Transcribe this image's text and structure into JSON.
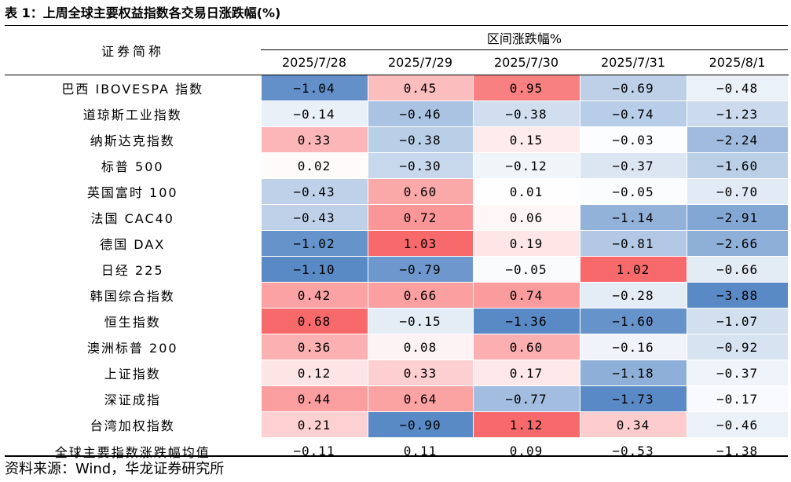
{
  "title": "表 1：上周全球主要权益指数各交易日涨跌幅(%)",
  "header": {
    "name_col": "证券简称",
    "group_label": "区间涨跌幅%",
    "dates": [
      "2025/7/28",
      "2025/7/29",
      "2025/7/30",
      "2025/7/31",
      "2025/8/1"
    ]
  },
  "rows": [
    {
      "name": "巴西 IBOVESPA 指数",
      "values": [
        "-1.04",
        "0.45",
        "0.95",
        "-0.69",
        "-0.48"
      ]
    },
    {
      "name": "道琼斯工业指数",
      "values": [
        "-0.14",
        "-0.46",
        "-0.38",
        "-0.74",
        "-1.23"
      ]
    },
    {
      "name": "纳斯达克指数",
      "values": [
        "0.33",
        "-0.38",
        "0.15",
        "-0.03",
        "-2.24"
      ]
    },
    {
      "name": "标普 500",
      "values": [
        "0.02",
        "-0.30",
        "-0.12",
        "-0.37",
        "-1.60"
      ]
    },
    {
      "name": "英国富时 100",
      "values": [
        "-0.43",
        "0.60",
        "0.01",
        "-0.05",
        "-0.70"
      ]
    },
    {
      "name": "法国 CAC40",
      "values": [
        "-0.43",
        "0.72",
        "0.06",
        "-1.14",
        "-2.91"
      ]
    },
    {
      "name": "德国 DAX",
      "values": [
        "-1.02",
        "1.03",
        "0.19",
        "-0.81",
        "-2.66"
      ]
    },
    {
      "name": "日经 225",
      "values": [
        "-1.10",
        "-0.79",
        "-0.05",
        "1.02",
        "-0.66"
      ]
    },
    {
      "name": "韩国综合指数",
      "values": [
        "0.42",
        "0.66",
        "0.74",
        "-0.28",
        "-3.88"
      ]
    },
    {
      "name": "恒生指数",
      "values": [
        "0.68",
        "-0.15",
        "-1.36",
        "-1.60",
        "-1.07"
      ]
    },
    {
      "name": "澳洲标普 200",
      "values": [
        "0.36",
        "0.08",
        "0.60",
        "-0.16",
        "-0.92"
      ]
    },
    {
      "name": "上证指数",
      "values": [
        "0.12",
        "0.33",
        "0.17",
        "-1.18",
        "-0.37"
      ]
    },
    {
      "name": "深证成指",
      "values": [
        "0.44",
        "0.64",
        "-0.77",
        "-1.73",
        "-0.17"
      ]
    },
    {
      "name": "台湾加权指数",
      "values": [
        "0.21",
        "-0.90",
        "1.12",
        "0.34",
        "-0.46"
      ]
    }
  ],
  "average_row": {
    "name": "全球主要指数涨跌幅均值",
    "values": [
      "-0.11",
      "0.11",
      "0.09",
      "-0.53",
      "-1.38"
    ]
  },
  "source": "资料来源：Wind，华龙证券研究所",
  "colors": {
    "positive": "#f8696b",
    "negative": "#5a8ac6",
    "neutral": "#ffffff"
  }
}
